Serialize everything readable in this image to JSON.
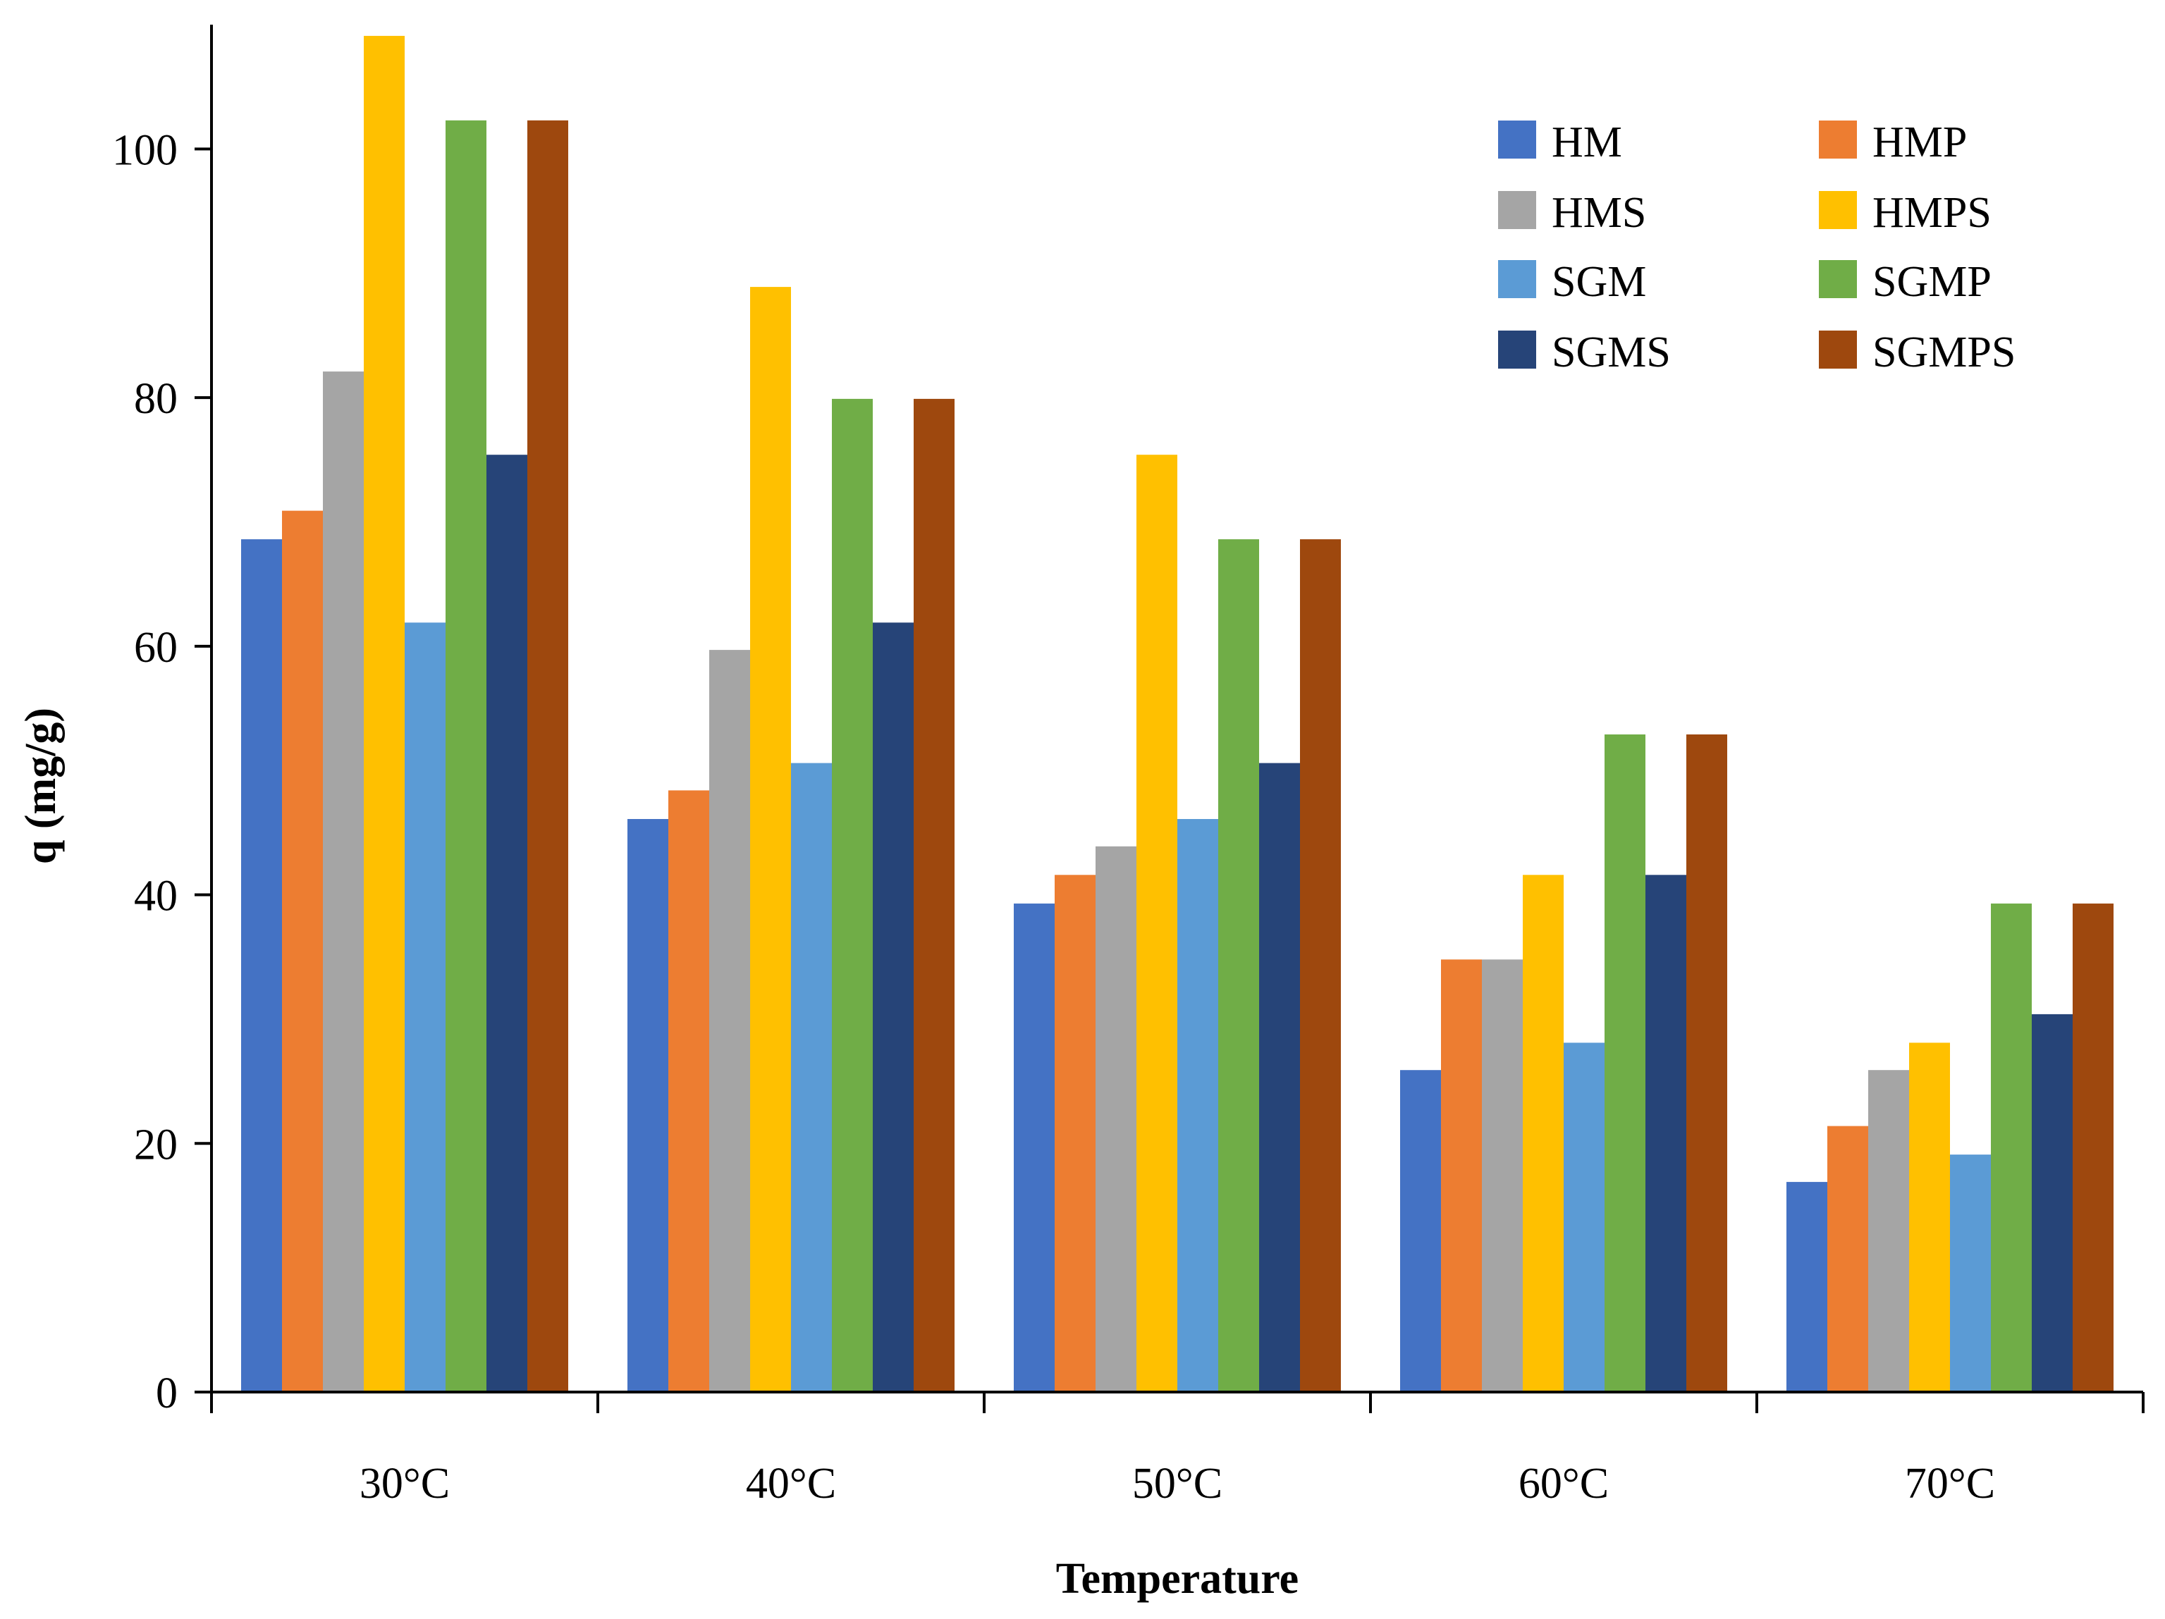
{
  "chart_data": {
    "type": "bar",
    "categories": [
      "30°C",
      "40°C",
      "50°C",
      "60°C",
      "70°C"
    ],
    "series": [
      {
        "name": "HM",
        "color": "#4472C4",
        "values": [
          68.6,
          46.1,
          39.3,
          25.9,
          16.9
        ]
      },
      {
        "name": "HMP",
        "color": "#ED7D31",
        "values": [
          70.9,
          48.4,
          41.6,
          34.8,
          21.4
        ]
      },
      {
        "name": "HMS",
        "color": "#A5A5A5",
        "values": [
          82.1,
          59.7,
          43.9,
          34.8,
          25.9
        ]
      },
      {
        "name": "HMPS",
        "color": "#FFC000",
        "values": [
          109.1,
          88.9,
          75.4,
          41.6,
          28.1
        ]
      },
      {
        "name": "SGM",
        "color": "#5B9BD5",
        "values": [
          61.9,
          50.6,
          46.1,
          28.1,
          19.1
        ]
      },
      {
        "name": "SGMP",
        "color": "#70AD47",
        "values": [
          102.3,
          79.9,
          68.6,
          52.9,
          39.3
        ]
      },
      {
        "name": "SGMS",
        "color": "#264478",
        "values": [
          75.4,
          61.9,
          50.6,
          41.6,
          30.4
        ]
      },
      {
        "name": "SGMPS",
        "color": "#9E480E",
        "values": [
          102.3,
          79.9,
          68.6,
          52.9,
          39.3
        ]
      }
    ],
    "title": "",
    "xlabel": "Temperature",
    "ylabel": "q (mg/g)",
    "ylim": [
      0,
      110
    ],
    "yticks": [
      0,
      20,
      40,
      60,
      80,
      100
    ],
    "grid": false,
    "legend_position": "top-right"
  }
}
